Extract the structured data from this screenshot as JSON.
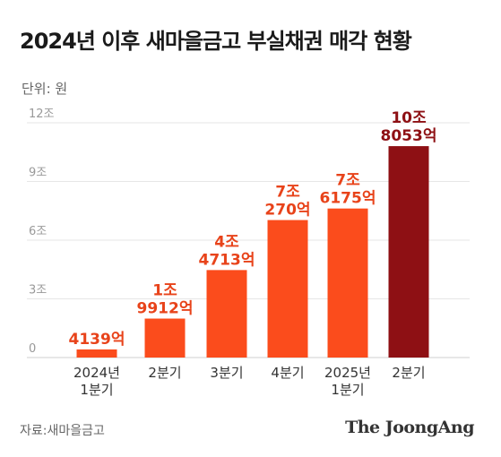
{
  "title": "2024년 이후 새마을금고 부실채권 매각 현황",
  "unit_label": "단위: 원",
  "source": "자료:새마을금고",
  "brand": "The JoongAng",
  "colors": {
    "bar": "#fb4c1c",
    "highlight": "#8e1014",
    "label": "#e8431a",
    "highlight_label": "#8e1014"
  },
  "chart_data": {
    "type": "bar",
    "categories": [
      [
        "2024년",
        "1분기"
      ],
      [
        "2분기"
      ],
      [
        "3분기"
      ],
      [
        "4분기"
      ],
      [
        "2025년",
        "1분기"
      ],
      [
        "2분기"
      ]
    ],
    "values": [
      0.4139,
      1.9912,
      4.4713,
      7.027,
      7.6175,
      10.8053
    ],
    "value_labels": [
      [
        "4139억"
      ],
      [
        "1조",
        "9912억"
      ],
      [
        "4조",
        "4713억"
      ],
      [
        "7조",
        "270억"
      ],
      [
        "7조",
        "6175억"
      ],
      [
        "10조",
        "8053억"
      ]
    ],
    "y_unit": "조",
    "ylim": [
      0,
      12
    ],
    "yticks": [
      "0",
      "3조",
      "6조",
      "9조",
      "12조"
    ],
    "ytick_values": [
      0,
      3,
      6,
      9,
      12
    ],
    "highlight_index": 5,
    "grid": true
  }
}
